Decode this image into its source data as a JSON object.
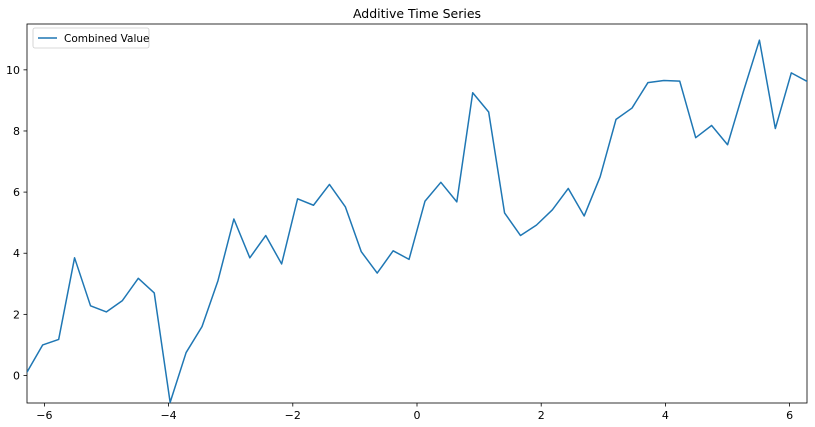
{
  "chart_data": {
    "type": "line",
    "title": "Additive Time Series",
    "xlabel": "",
    "ylabel": "",
    "xlim": [
      -6.28,
      6.28
    ],
    "ylim": [
      -0.9,
      11.5
    ],
    "x_ticks": [
      -6,
      -4,
      -2,
      0,
      2,
      4,
      6
    ],
    "x_tick_labels": [
      "−6",
      "−4",
      "−2",
      "0",
      "2",
      "4",
      "6"
    ],
    "y_ticks": [
      0,
      2,
      4,
      6,
      8,
      10
    ],
    "y_tick_labels": [
      "0",
      "2",
      "4",
      "6",
      "8",
      "10"
    ],
    "grid": false,
    "legend": {
      "location": "upper left",
      "entries": [
        "Combined Value"
      ]
    },
    "series": [
      {
        "name": "Combined Value",
        "color": "#1f77b4",
        "x": [
          -6.283,
          -6.027,
          -5.77,
          -5.514,
          -5.257,
          -5.001,
          -4.744,
          -4.488,
          -4.231,
          -3.975,
          -3.718,
          -3.462,
          -3.205,
          -2.949,
          -2.692,
          -2.436,
          -2.18,
          -1.923,
          -1.667,
          -1.41,
          -1.154,
          -0.897,
          -0.641,
          -0.384,
          -0.128,
          0.128,
          0.384,
          0.641,
          0.897,
          1.154,
          1.41,
          1.667,
          1.923,
          2.18,
          2.436,
          2.692,
          2.949,
          3.205,
          3.462,
          3.718,
          3.975,
          4.231,
          4.488,
          4.744,
          5.001,
          5.257,
          5.514,
          5.77,
          6.027,
          6.283
        ],
        "y": [
          0.1,
          1.0,
          1.18,
          3.85,
          2.28,
          2.08,
          2.45,
          3.18,
          2.7,
          -0.88,
          0.75,
          1.6,
          3.1,
          5.12,
          3.85,
          4.58,
          3.65,
          5.78,
          5.57,
          6.25,
          5.52,
          4.05,
          3.35,
          4.08,
          3.8,
          5.7,
          6.32,
          5.68,
          9.25,
          8.62,
          5.32,
          4.58,
          4.92,
          5.42,
          6.12,
          5.22,
          6.5,
          8.38,
          8.75,
          9.58,
          9.65,
          9.63,
          7.78,
          8.18,
          7.55,
          9.3,
          10.97,
          8.08,
          9.9,
          9.62
        ]
      }
    ]
  }
}
